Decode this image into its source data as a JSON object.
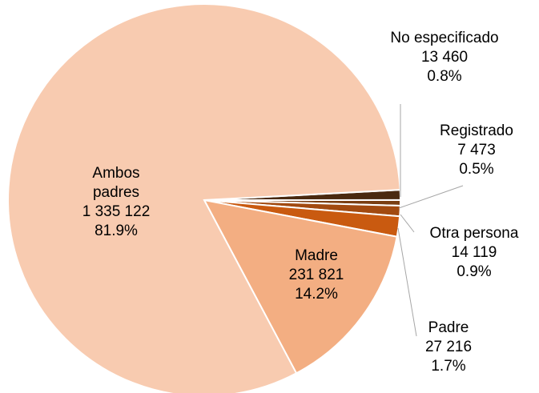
{
  "chart_data": {
    "type": "pie",
    "categories": [
      "No especificado",
      "Registrado",
      "Otra persona",
      "Padre",
      "Madre",
      "Ambos padres"
    ],
    "values": [
      13460,
      7473,
      14119,
      27216,
      231821,
      1335122
    ],
    "value_labels": [
      "13 460",
      "7 473",
      "14 119",
      "27 216",
      "231 821",
      "1 335 122"
    ],
    "percent_labels": [
      "0.8%",
      "0.5%",
      "0.9%",
      "1.7%",
      "14.2%",
      "81.9%"
    ],
    "colors": [
      "#4a2a10",
      "#7a3e12",
      "#a24a10",
      "#c95a10",
      "#f3ae82",
      "#f8cbb0"
    ]
  }
}
